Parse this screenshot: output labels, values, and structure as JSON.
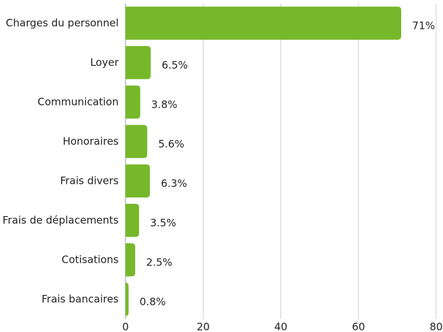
{
  "chart_data": {
    "type": "bar",
    "orientation": "horizontal",
    "categories": [
      "Charges du personnel",
      "Loyer",
      "Communication",
      "Honoraires",
      "Frais divers",
      "Frais de déplacements",
      "Cotisations",
      "Frais bancaires"
    ],
    "values": [
      71,
      6.5,
      3.8,
      5.6,
      6.3,
      3.5,
      2.5,
      0.8
    ],
    "value_labels": [
      "71%",
      "6.5%",
      "3.8%",
      "5.6%",
      "6.3%",
      "3.5%",
      "2.5%",
      "0.8%"
    ],
    "color": "#76b82a",
    "xlim": [
      0,
      80
    ],
    "xticks": [
      0,
      20,
      40,
      60,
      80
    ],
    "grid": true
  }
}
